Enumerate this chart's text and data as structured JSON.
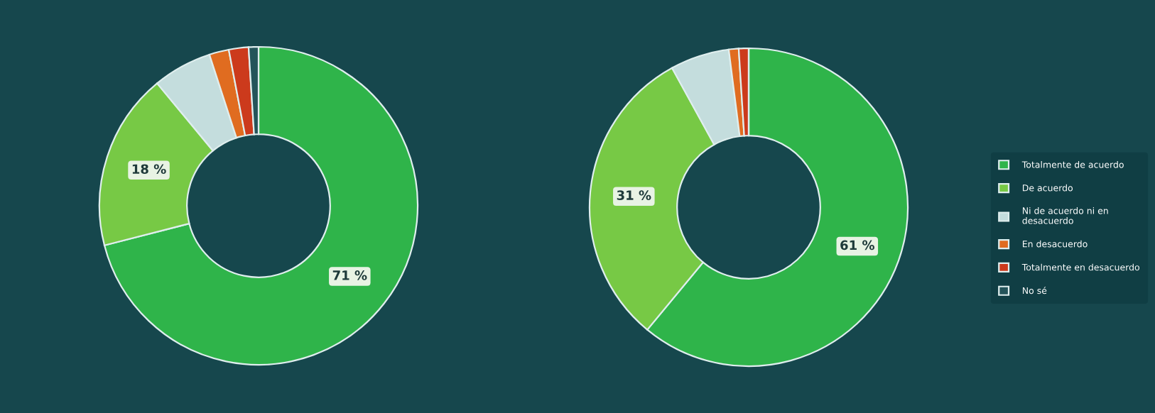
{
  "chart_data": [
    {
      "type": "donut",
      "categories": [
        "Totalmente de acuerdo",
        "De acuerdo",
        "Ni de acuerdo ni en desacuerdo",
        "En desacuerdo",
        "Totalmente en desacuerdo",
        "No sé"
      ],
      "values": [
        71,
        18,
        6,
        2,
        2,
        1
      ],
      "colors": [
        "#2fb44a",
        "#77c945",
        "#c4dddd",
        "#e06c20",
        "#cc3a1c",
        "#24545a"
      ],
      "value_labels": [
        "71 %",
        "18 %",
        null,
        null,
        null,
        null
      ],
      "legend": "right"
    },
    {
      "type": "donut",
      "categories": [
        null,
        null,
        null,
        null,
        null,
        null
      ],
      "values": [
        61,
        31,
        6,
        1,
        1,
        0
      ],
      "colors": [
        "#2fb44a",
        "#77c945",
        "#c4dddd",
        "#e06c20",
        "#cc3a1c",
        "#24545a"
      ],
      "value_labels": [
        "61 %",
        "31 %",
        null,
        null,
        null,
        null
      ]
    }
  ]
}
